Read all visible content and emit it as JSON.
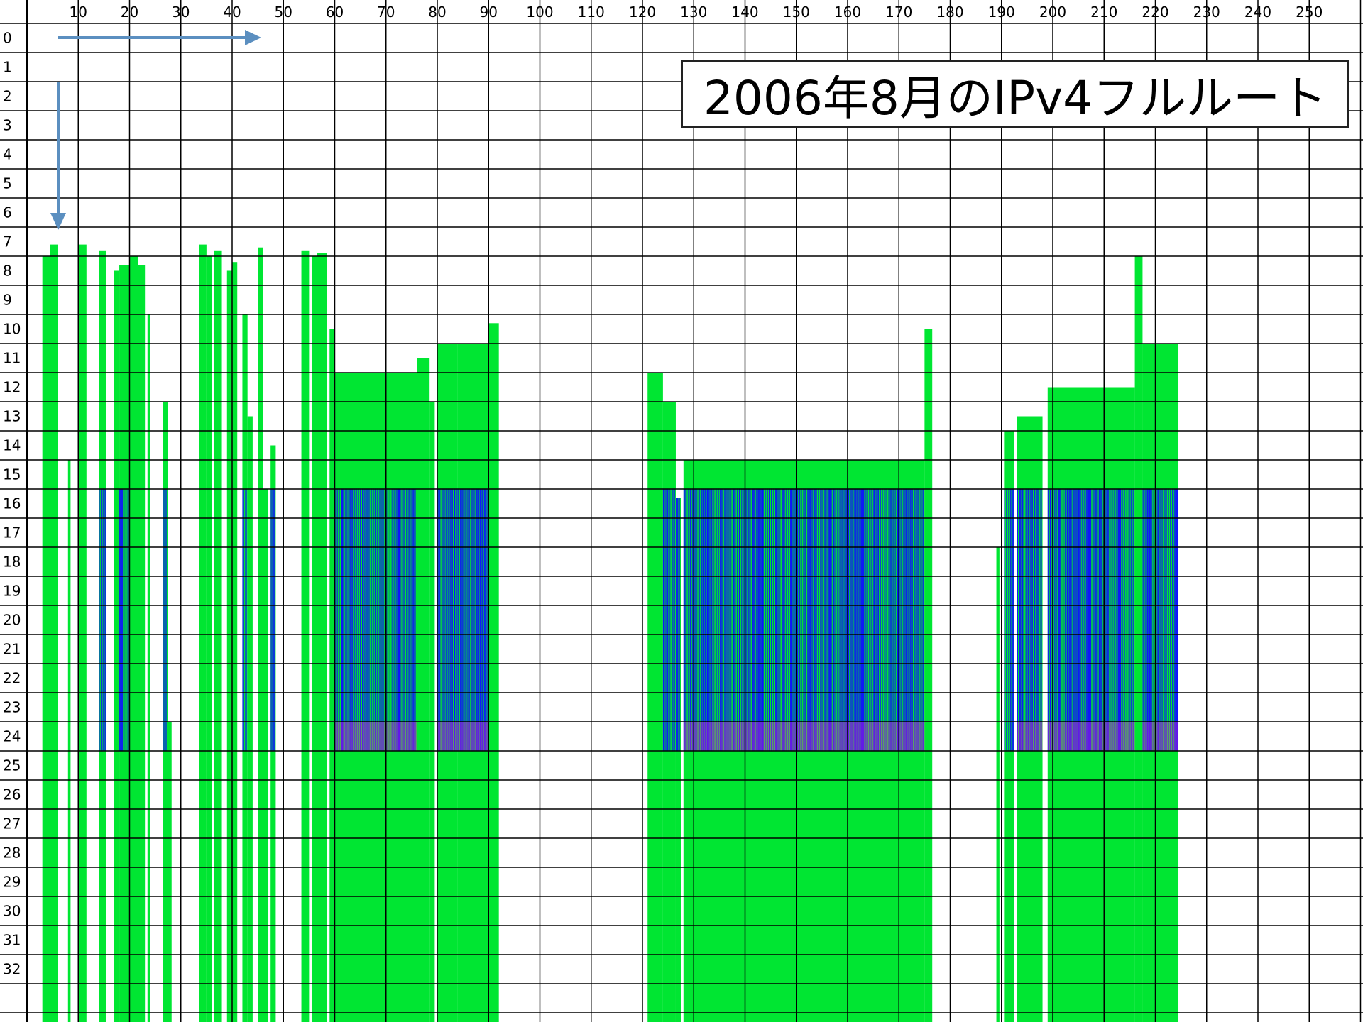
{
  "chart_data": {
    "type": "heatmap",
    "title": "2006年8月のIPv4フルルート",
    "xlabel": "",
    "ylabel": "",
    "xlim": [
      0,
      260
    ],
    "ylim": [
      0,
      33
    ],
    "x_tick_labels": [
      "10",
      "20",
      "30",
      "40",
      "50",
      "60",
      "70",
      "80",
      "90",
      "100",
      "110",
      "120",
      "130",
      "140",
      "150",
      "160",
      "170",
      "180",
      "190",
      "200",
      "210",
      "220",
      "230",
      "240",
      "250"
    ],
    "y_tick_labels": [
      "0",
      "1",
      "2",
      "3",
      "4",
      "5",
      "6",
      "7",
      "8",
      "9",
      "10",
      "11",
      "12",
      "13",
      "14",
      "15",
      "16",
      "17",
      "18",
      "19",
      "20",
      "21",
      "22",
      "23",
      "24",
      "25",
      "26",
      "27",
      "28",
      "29",
      "30",
      "31",
      "32"
    ],
    "grid": true,
    "legend": "none",
    "colors": {
      "low": "#00e632",
      "mid": "#1010ff",
      "high": "#ff20c8",
      "grid": "#000000"
    },
    "columns": [
      {
        "x0": 3.0,
        "x1": 4.5,
        "top": 8.0,
        "blue_from": null
      },
      {
        "x0": 4.5,
        "x1": 6.0,
        "top": 7.6,
        "blue_from": null
      },
      {
        "x0": 8.0,
        "x1": 8.5,
        "top": 15.0,
        "blue_from": null
      },
      {
        "x0": 10.0,
        "x1": 11.6,
        "top": 7.6,
        "blue_from": null
      },
      {
        "x0": 14.0,
        "x1": 15.5,
        "top": 7.8,
        "blue_from": 16.0
      },
      {
        "x0": 17.0,
        "x1": 18.0,
        "top": 8.5,
        "blue_from": null
      },
      {
        "x0": 18.0,
        "x1": 20.0,
        "top": 8.3,
        "blue_from": 16.0
      },
      {
        "x0": 20.0,
        "x1": 21.6,
        "top": 8.0,
        "blue_from": null
      },
      {
        "x0": 21.6,
        "x1": 23.0,
        "top": 8.3,
        "blue_from": null
      },
      {
        "x0": 23.5,
        "x1": 24.0,
        "top": 10.0,
        "blue_from": null
      },
      {
        "x0": 26.5,
        "x1": 27.5,
        "top": 13.0,
        "blue_from": 16.0
      },
      {
        "x0": 27.5,
        "x1": 28.2,
        "top": 24.0,
        "blue_from": null
      },
      {
        "x0": 33.5,
        "x1": 35.0,
        "top": 7.6,
        "blue_from": null
      },
      {
        "x0": 35.0,
        "x1": 36.0,
        "top": 8.0,
        "blue_from": null
      },
      {
        "x0": 36.5,
        "x1": 38.0,
        "top": 7.8,
        "blue_from": null
      },
      {
        "x0": 39.0,
        "x1": 40.0,
        "top": 8.5,
        "blue_from": null
      },
      {
        "x0": 40.0,
        "x1": 41.0,
        "top": 8.2,
        "blue_from": null
      },
      {
        "x0": 42.0,
        "x1": 43.0,
        "top": 10.0,
        "blue_from": 16.0
      },
      {
        "x0": 43.0,
        "x1": 44.0,
        "top": 13.5,
        "blue_from": null
      },
      {
        "x0": 45.0,
        "x1": 46.0,
        "top": 7.7,
        "blue_from": null
      },
      {
        "x0": 46.0,
        "x1": 47.0,
        "top": 16.0,
        "blue_from": null
      },
      {
        "x0": 47.5,
        "x1": 48.5,
        "top": 14.5,
        "blue_from": 16.0
      },
      {
        "x0": 53.5,
        "x1": 55.0,
        "top": 7.8,
        "blue_from": null
      },
      {
        "x0": 55.5,
        "x1": 56.5,
        "top": 8.0,
        "blue_from": null
      },
      {
        "x0": 56.5,
        "x1": 57.5,
        "top": 7.9,
        "blue_from": null
      },
      {
        "x0": 57.5,
        "x1": 58.5,
        "top": 7.9,
        "blue_from": null
      },
      {
        "x0": 59.0,
        "x1": 60.0,
        "top": 10.5,
        "blue_from": null
      },
      {
        "x0": 60.0,
        "x1": 76.0,
        "top": 12.0,
        "blue_from": 16.0
      },
      {
        "x0": 76.0,
        "x1": 78.5,
        "top": 11.5,
        "blue_from": null
      },
      {
        "x0": 78.5,
        "x1": 79.5,
        "top": 13.0,
        "blue_from": null
      },
      {
        "x0": 80.0,
        "x1": 84.0,
        "top": 11.0,
        "blue_from": 16.0
      },
      {
        "x0": 84.0,
        "x1": 90.0,
        "top": 11.0,
        "blue_from": 16.0
      },
      {
        "x0": 90.0,
        "x1": 92.0,
        "top": 10.3,
        "blue_from": null
      },
      {
        "x0": 121.0,
        "x1": 124.0,
        "top": 12.0,
        "blue_from": null
      },
      {
        "x0": 124.0,
        "x1": 126.5,
        "top": 13.0,
        "blue_from": 16.0
      },
      {
        "x0": 126.5,
        "x1": 127.5,
        "top": 16.3,
        "blue_from": 16.2
      },
      {
        "x0": 128.0,
        "x1": 175.0,
        "top": 15.0,
        "blue_from": 16.0
      },
      {
        "x0": 175.0,
        "x1": 176.5,
        "top": 10.5,
        "blue_from": null
      },
      {
        "x0": 189.0,
        "x1": 189.6,
        "top": 18.0,
        "blue_from": null
      },
      {
        "x0": 190.5,
        "x1": 192.5,
        "top": 14.0,
        "blue_from": 16.0
      },
      {
        "x0": 193.0,
        "x1": 198.0,
        "top": 13.5,
        "blue_from": 16.0
      },
      {
        "x0": 199.0,
        "x1": 216.0,
        "top": 12.5,
        "blue_from": 16.0
      },
      {
        "x0": 216.0,
        "x1": 217.5,
        "top": 8.0,
        "blue_from": null
      },
      {
        "x0": 217.5,
        "x1": 224.5,
        "top": 11.0,
        "blue_from": 16.0
      }
    ]
  }
}
